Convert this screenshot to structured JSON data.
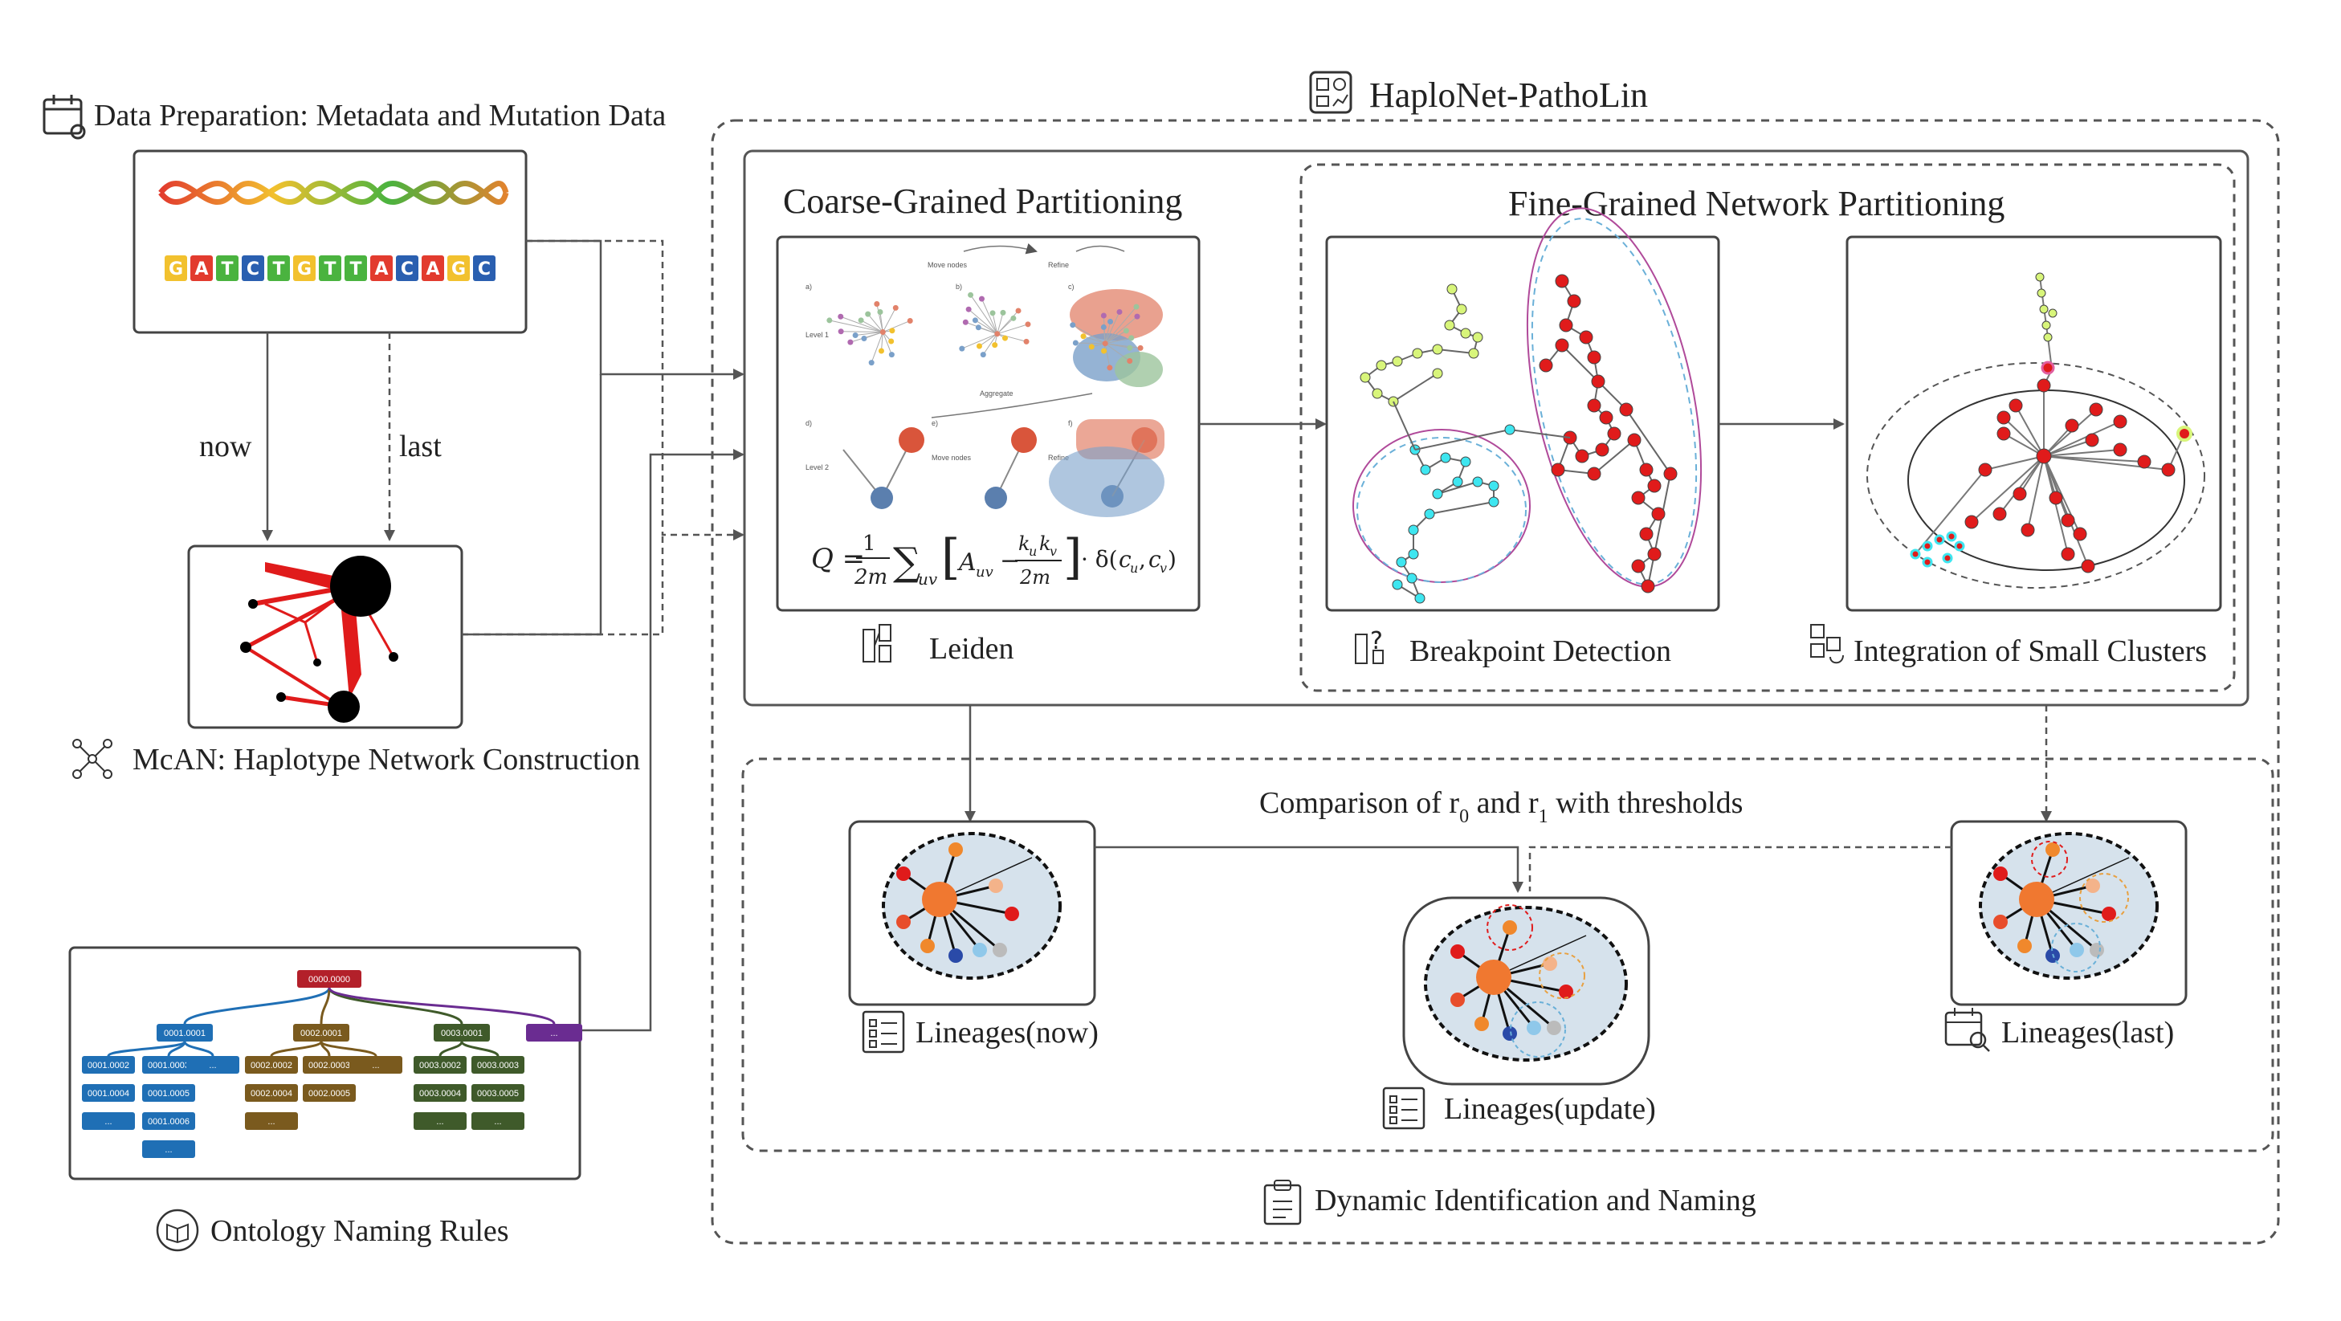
{
  "main_title": "HaploNet-PathoLin",
  "data_prep": {
    "label": "Data Preparation: Metadata and Mutation Data",
    "sequence": [
      "G",
      "A",
      "T",
      "C",
      "T",
      "G",
      "T",
      "T",
      "A",
      "C",
      "A",
      "G",
      "C"
    ]
  },
  "arrows": {
    "now": "now",
    "last": "last"
  },
  "mcan": {
    "label": "McAN: Haplotype Network Construction"
  },
  "ontology": {
    "label": "Ontology Naming Rules",
    "root": "0000.0000",
    "level1": [
      "0001.0001",
      "0002.0001",
      "0003.0001",
      "..."
    ],
    "level2": [
      "0001.0002",
      "0001.0003",
      "...",
      "0002.0002",
      "0002.0003",
      "...",
      "0003.0002",
      "0003.0003"
    ],
    "level3": [
      "0001.0004",
      "0001.0005",
      "0002.0004",
      "0002.0005",
      "0003.0004",
      "0003.0005"
    ],
    "level4": [
      "...",
      "0001.0006",
      "...",
      "...",
      "..."
    ],
    "level5": [
      "..."
    ]
  },
  "coarse": {
    "title": "Coarse-Grained Partitioning",
    "method": "Leiden",
    "formula": "Q = 1/2m ∑uv [ Auv − kukv / 2m ] · δ(cu, cv)",
    "panel_labels": [
      "a)",
      "b)",
      "c)",
      "d)",
      "e)",
      "f)"
    ],
    "step_labels": [
      "Move nodes",
      "Refine",
      "Aggregate",
      "Move nodes",
      "Refine"
    ],
    "level_labels": [
      "Level 1",
      "Level 2"
    ]
  },
  "fine": {
    "title": "Fine-Grained Network Partitioning",
    "breakpoint": "Breakpoint Detection",
    "integration": "Integration of Small Clusters"
  },
  "dynamic": {
    "comparison_prefix": "Comparison of r",
    "sub0": "0",
    "and": " and r",
    "sub1": "1",
    "comparison_suffix": " with thresholds",
    "now": "Lineages(now)",
    "update": "Lineages(update)",
    "last": "Lineages(last)",
    "footer": "Dynamic Identification and Naming"
  },
  "colors": {
    "ontology_blue": "#1f6fb5",
    "ontology_brown": "#7a5a1e",
    "ontology_green": "#3f5a2a",
    "ontology_purple": "#6a2c91",
    "ontology_root": "#b3202a",
    "node_red": "#e01b1b",
    "node_cyan": "#3ee6f0",
    "node_lime": "#d8f57a",
    "lineage_bg": "#d6e2ec"
  }
}
